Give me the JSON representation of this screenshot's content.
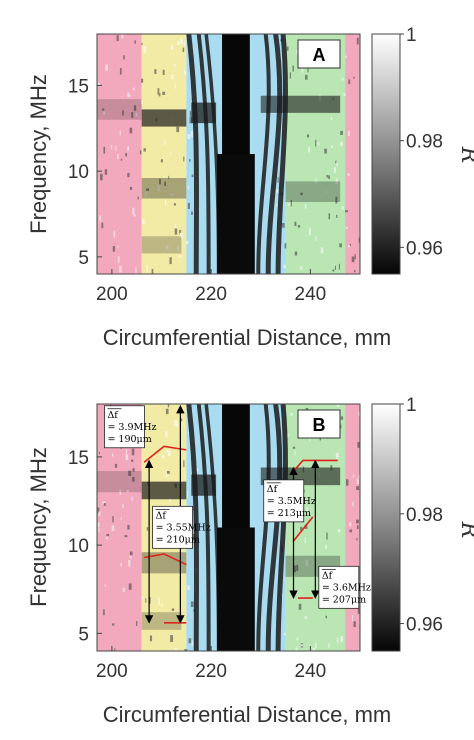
{
  "colors": {
    "pink": "#f3a9bd",
    "yellow": "#f2eba6",
    "blue": "#a9dcf0",
    "green": "#b9e6b3",
    "red_line": "#e0231c",
    "text": "#333333"
  },
  "chart_data": [
    {
      "type": "heatmap",
      "panel_label": "A",
      "xlabel": "Circumferential Distance, mm",
      "ylabel": "Frequency, MHz",
      "xlim": [
        197,
        250
      ],
      "ylim": [
        4,
        18
      ],
      "xticks": [
        200,
        220,
        240
      ],
      "yticks": [
        5,
        10,
        15
      ],
      "x_tick_labels": [
        "200",
        "220",
        "240"
      ],
      "y_tick_labels": [
        "5",
        "10",
        "15"
      ],
      "colorbar": {
        "label": "R",
        "range": [
          0.955,
          1.0
        ],
        "ticks": [
          0.96,
          0.98,
          1.0
        ],
        "tick_labels": [
          "0.96",
          "0.98",
          "1"
        ]
      },
      "shaded_regions": [
        {
          "x": [
            197,
            206
          ],
          "color": "pink"
        },
        {
          "x": [
            206,
            215
          ],
          "color": "yellow"
        },
        {
          "x": [
            215,
            235
          ],
          "color": "blue"
        },
        {
          "x": [
            235,
            247
          ],
          "color": "green"
        },
        {
          "x": [
            247,
            250
          ],
          "color": "pink"
        }
      ]
    },
    {
      "type": "heatmap",
      "panel_label": "B",
      "xlabel": "Circumferential Distance, mm",
      "ylabel": "Frequency, MHz",
      "xlim": [
        197,
        250
      ],
      "ylim": [
        4,
        18
      ],
      "xticks": [
        200,
        220,
        240
      ],
      "yticks": [
        5,
        10,
        15
      ],
      "x_tick_labels": [
        "200",
        "220",
        "240"
      ],
      "y_tick_labels": [
        "5",
        "10",
        "15"
      ],
      "colorbar": {
        "label": "R",
        "range": [
          0.955,
          1.0
        ],
        "ticks": [
          0.96,
          0.98,
          1.0
        ],
        "tick_labels": [
          "0.96",
          "0.98",
          "1"
        ]
      },
      "shaded_regions": [
        {
          "x": [
            197,
            206
          ],
          "color": "pink"
        },
        {
          "x": [
            206,
            215
          ],
          "color": "yellow"
        },
        {
          "x": [
            215,
            235
          ],
          "color": "blue"
        },
        {
          "x": [
            235,
            247
          ],
          "color": "green"
        },
        {
          "x": [
            247,
            250
          ],
          "color": "pink"
        }
      ],
      "red_lines": [
        [
          [
            206.5,
            14.7
          ],
          [
            210.5,
            15.6
          ],
          [
            215.0,
            15.4
          ]
        ],
        [
          [
            206.5,
            9.3
          ],
          [
            210.5,
            9.5
          ],
          [
            215.0,
            8.9
          ]
        ],
        [
          [
            210.5,
            5.6
          ],
          [
            215.0,
            5.6
          ]
        ],
        [
          [
            236.0,
            14.0
          ],
          [
            238.5,
            14.8
          ],
          [
            245.5,
            14.8
          ]
        ],
        [
          [
            236.5,
            10.2
          ],
          [
            240.5,
            11.6
          ]
        ],
        [
          [
            237.5,
            7.0
          ],
          [
            240.5,
            7.0
          ]
        ]
      ],
      "arrows": [
        {
          "x": 207.5,
          "y_from": 14.8,
          "y_to": 5.6
        },
        {
          "x": 213.8,
          "y_from": 17.9,
          "y_to": 5.6
        },
        {
          "x": 236.6,
          "y_from": 14.4,
          "y_to": 7.0
        },
        {
          "x": 241.0,
          "y_from": 14.8,
          "y_to": 7.0
        }
      ],
      "annotations": [
        {
          "lines": [
            "Δf",
            "= 3.9MHz",
            "= 190μm"
          ]
        },
        {
          "lines": [
            "Δf",
            "= 3.55MHz",
            "= 210μm"
          ]
        },
        {
          "lines": [
            "Δf",
            "= 3.5MHz",
            "= 213μm"
          ]
        },
        {
          "lines": [
            "Δf",
            "= 3.6MHz",
            "= 207μm"
          ]
        }
      ]
    }
  ]
}
